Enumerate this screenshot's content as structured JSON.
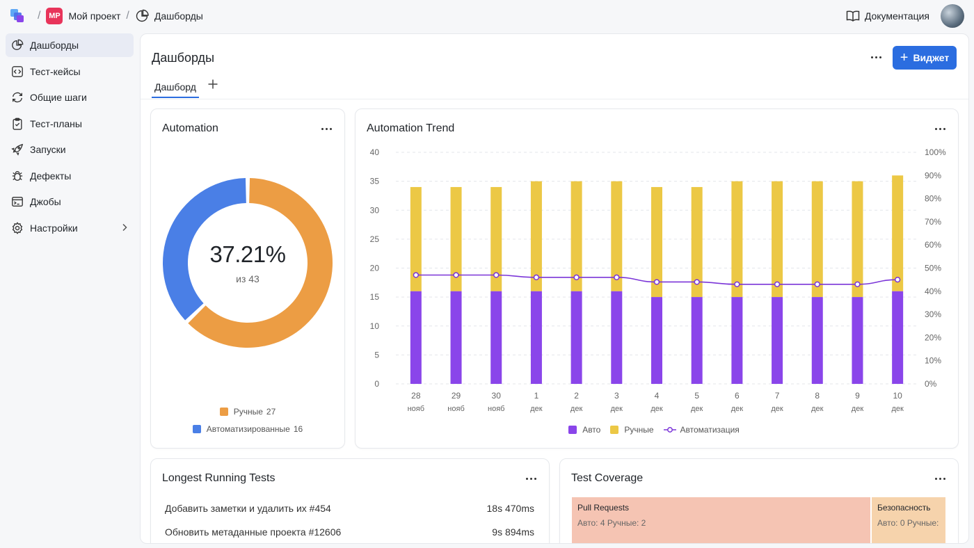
{
  "breadcrumb": {
    "project_initials": "MP",
    "project_name": "Мой проект",
    "page_name": "Дашборды",
    "separator": "/"
  },
  "topbar": {
    "docs_label": "Документация"
  },
  "sidebar": {
    "items": [
      {
        "label": "Дашборды",
        "icon": "pie-chart-icon"
      },
      {
        "label": "Тест-кейсы",
        "icon": "code-box-icon"
      },
      {
        "label": "Общие шаги",
        "icon": "refresh-icon"
      },
      {
        "label": "Тест-планы",
        "icon": "clipboard-icon"
      },
      {
        "label": "Запуски",
        "icon": "rocket-icon"
      },
      {
        "label": "Дефекты",
        "icon": "bug-icon"
      },
      {
        "label": "Джобы",
        "icon": "terminal-icon"
      },
      {
        "label": "Настройки",
        "icon": "gear-icon"
      }
    ]
  },
  "page": {
    "title": "Дашборды",
    "widget_button": "Виджет",
    "plus": "+",
    "tabs": [
      {
        "label": "Дашборд"
      }
    ]
  },
  "automation": {
    "title": "Automation",
    "percent": "37.21%",
    "subtitle": "из 43",
    "manual_label": "Ручные",
    "manual_count": "27",
    "auto_label": "Автоматизированные",
    "auto_count": "16",
    "manual": 27,
    "auto": 16,
    "colors": {
      "manual": "#ec9d44",
      "auto": "#4a7fe6"
    }
  },
  "trend": {
    "title": "Automation Trend",
    "legend": {
      "auto": "Авто",
      "manual": "Ручные",
      "rate": "Автоматизация"
    },
    "colors": {
      "auto": "#8a45ea",
      "manual": "#ecc845",
      "rate": "#7b35d8"
    }
  },
  "chart_data": {
    "type": "bar",
    "title": "Automation Trend",
    "stacked": true,
    "categories": [
      "28 нояб",
      "29 нояб",
      "30 нояб",
      "1 дек",
      "2 дек",
      "3 дек",
      "4 дек",
      "5 дек",
      "6 дек",
      "7 дек",
      "8 дек",
      "9 дек",
      "10 дек"
    ],
    "day_labels": [
      "28",
      "29",
      "30",
      "1",
      "2",
      "3",
      "4",
      "5",
      "6",
      "7",
      "8",
      "9",
      "10"
    ],
    "month_labels": [
      "нояб",
      "нояб",
      "нояб",
      "дек",
      "дек",
      "дек",
      "дек",
      "дек",
      "дек",
      "дек",
      "дек",
      "дек",
      "дек"
    ],
    "series": [
      {
        "name": "Авто",
        "values": [
          16,
          16,
          16,
          16,
          16,
          16,
          15,
          15,
          15,
          15,
          15,
          15,
          16
        ]
      },
      {
        "name": "Ручные",
        "values": [
          18,
          18,
          18,
          19,
          19,
          19,
          19,
          19,
          20,
          20,
          20,
          20,
          20
        ]
      },
      {
        "name": "Автоматизация",
        "axis": "right",
        "type": "line",
        "values": [
          47,
          47,
          47,
          46,
          46,
          46,
          44,
          44,
          43,
          43,
          43,
          43,
          45
        ]
      }
    ],
    "ylim": [
      0,
      40
    ],
    "yticks": [
      "0",
      "5",
      "10",
      "15",
      "20",
      "25",
      "30",
      "35",
      "40"
    ],
    "y2lim": [
      0,
      100
    ],
    "y2ticks": [
      "0%",
      "10%",
      "20%",
      "30%",
      "40%",
      "50%",
      "60%",
      "70%",
      "80%",
      "90%",
      "100%"
    ],
    "legend": "bottom",
    "grid": true
  },
  "longest": {
    "title": "Longest Running Tests",
    "rows": [
      {
        "name": "Добавить заметки и удалить их #454",
        "time": "18s 470ms"
      },
      {
        "name": "Обновить метаданные проекта #12606",
        "time": "9s 894ms"
      }
    ]
  },
  "coverage": {
    "title": "Test Coverage",
    "cells": [
      {
        "name": "Pull Requests",
        "stats": "Авто: 4 Ручные: 2",
        "color": "#f5c4b3"
      },
      {
        "name": "Безопасность",
        "stats": "Авто: 0 Ручные:",
        "color": "#f6d3ac"
      }
    ]
  }
}
